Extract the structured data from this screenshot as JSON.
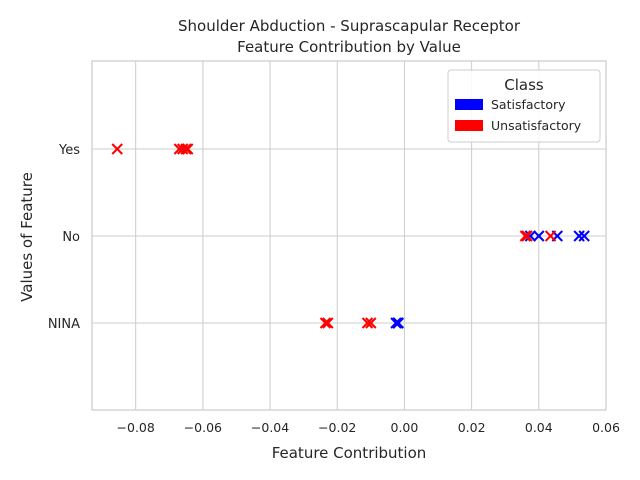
{
  "chart_data": {
    "type": "scatter",
    "title_lines": [
      "Shoulder Abduction - Suprascapular Receptor",
      "Feature Contribution by Value"
    ],
    "xlabel": "Feature Contribution",
    "ylabel": "Values of Feature",
    "xlim": [
      -0.093,
      0.06
    ],
    "xticks": [
      -0.08,
      -0.06,
      -0.04,
      -0.02,
      0.0,
      0.02,
      0.04,
      0.06
    ],
    "xtick_labels": [
      "−0.08",
      "−0.06",
      "−0.04",
      "−0.02",
      "0.00",
      "0.02",
      "0.04",
      "0.06"
    ],
    "categories": [
      "NINA",
      "No",
      "Yes"
    ],
    "grid": true,
    "marker": "x",
    "legend": {
      "title": "Class",
      "position": "top-right",
      "entries": [
        {
          "name": "Satisfactory",
          "color": "#0000ff"
        },
        {
          "name": "Unsatisfactory",
          "color": "#ff0000"
        }
      ]
    },
    "series": [
      {
        "name": "Satisfactory",
        "color": "#0000ff",
        "points": [
          {
            "x": -0.0025,
            "y": "NINA"
          },
          {
            "x": -0.002,
            "y": "NINA"
          },
          {
            "x": -0.0018,
            "y": "NINA"
          },
          {
            "x": 0.0375,
            "y": "No"
          },
          {
            "x": 0.04,
            "y": "No"
          },
          {
            "x": 0.0455,
            "y": "No"
          },
          {
            "x": 0.052,
            "y": "No"
          },
          {
            "x": 0.0535,
            "y": "No"
          }
        ]
      },
      {
        "name": "Unsatisfactory",
        "color": "#ff0000",
        "points": [
          {
            "x": -0.0855,
            "y": "Yes"
          },
          {
            "x": -0.067,
            "y": "Yes"
          },
          {
            "x": -0.066,
            "y": "Yes"
          },
          {
            "x": -0.065,
            "y": "Yes"
          },
          {
            "x": -0.0645,
            "y": "Yes"
          },
          {
            "x": 0.036,
            "y": "No"
          },
          {
            "x": 0.0365,
            "y": "No"
          },
          {
            "x": 0.0435,
            "y": "No"
          },
          {
            "x": -0.0235,
            "y": "NINA"
          },
          {
            "x": -0.0228,
            "y": "NINA"
          },
          {
            "x": -0.011,
            "y": "NINA"
          },
          {
            "x": -0.01,
            "y": "NINA"
          }
        ]
      }
    ]
  }
}
